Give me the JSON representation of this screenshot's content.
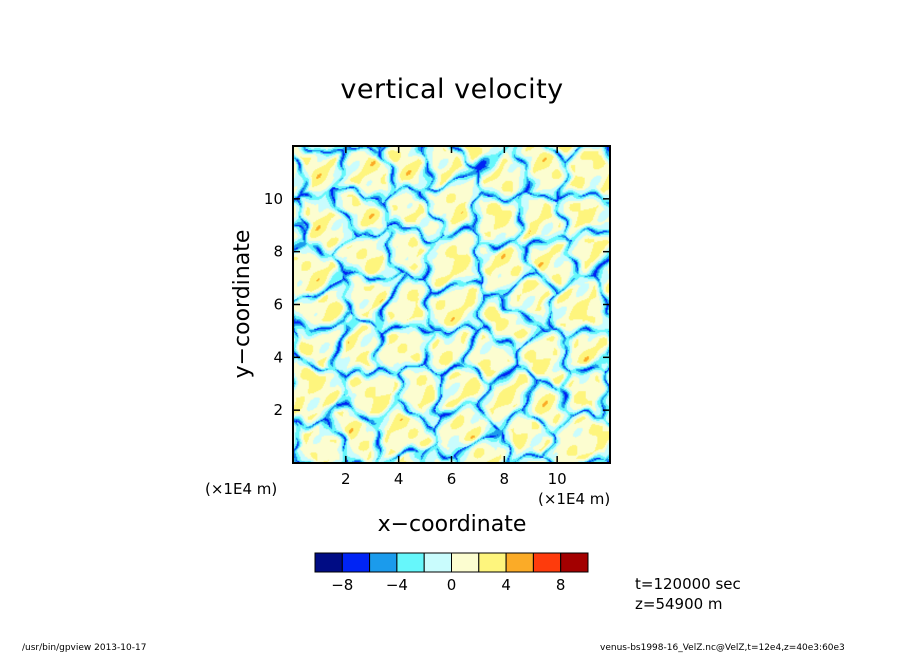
{
  "title": "vertical velocity",
  "xlabel": "x−coordinate",
  "ylabel": "y−coordinate",
  "x_unit": "(×1E4 m)",
  "y_unit": "(×1E4 m)",
  "info": {
    "time": "t=120000 sec",
    "level": "z=54900 m"
  },
  "footer": {
    "left": "/usr/bin/gpview   2013-10-17",
    "right": "venus-bs1998-16_VelZ.nc@VelZ,t=12e4,z=40e3:60e3"
  },
  "colors": {
    "levels": [
      "#000c84",
      "#0024f4",
      "#1b9bec",
      "#66f7fb",
      "#c9fcfd",
      "#fcfdd0",
      "#fef57d",
      "#fbab27",
      "#fe3b0c",
      "#a30000"
    ]
  },
  "chart_data": {
    "type": "heatmap",
    "title": "vertical velocity",
    "xlabel": "x−coordinate",
    "ylabel": "y−coordinate",
    "xlim": [
      0,
      12
    ],
    "ylim": [
      0,
      12
    ],
    "x_ticks": [
      2,
      4,
      6,
      8,
      10
    ],
    "y_ticks": [
      2,
      4,
      6,
      8,
      10
    ],
    "x_tick_labels": [
      "2",
      "4",
      "6",
      "8",
      "10"
    ],
    "y_tick_labels": [
      "2",
      "4",
      "6",
      "8",
      "10"
    ],
    "colorbar": {
      "boundaries": [
        -10,
        -8,
        -6,
        -4,
        -2,
        0,
        2,
        4,
        6,
        8,
        10
      ],
      "tick_values": [
        -8,
        -4,
        0,
        4,
        8
      ],
      "tick_labels": [
        "−8",
        "−4",
        "0",
        "4",
        "8"
      ]
    },
    "field_description": "cellular convection pattern: broad weak updrafts (0 to 4) bounded by narrow downdraft lanes (-2 to -8)"
  }
}
